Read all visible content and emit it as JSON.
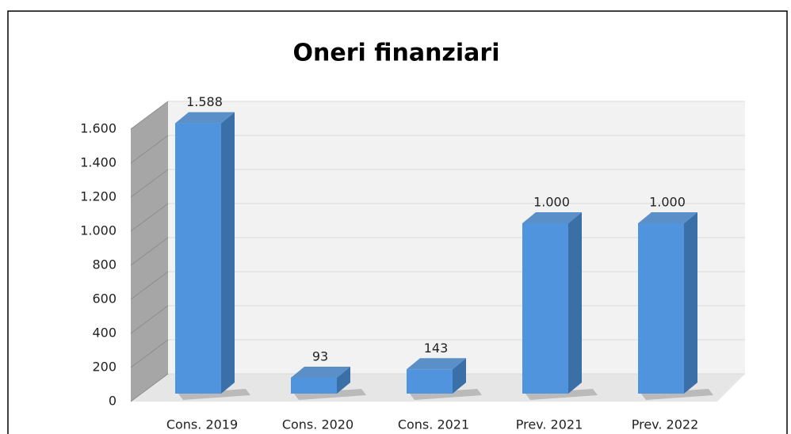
{
  "chart_data": {
    "type": "bar",
    "title": "Oneri finanziari",
    "categories": [
      "Cons. 2019",
      "Cons. 2020",
      "Cons. 2021",
      "Prev. 2021",
      "Prev. 2022"
    ],
    "values": [
      1588,
      93,
      143,
      1000,
      1000
    ],
    "value_labels": [
      "1.588",
      "93",
      "143",
      "1.000",
      "1.000"
    ],
    "color": "#4f94dc",
    "ylim": [
      0,
      1600
    ],
    "yticks": [
      0,
      200,
      400,
      600,
      800,
      {
        "value": 1000,
        "label": "1.000"
      },
      {
        "value": 1200,
        "label": "1.200"
      },
      {
        "value": 1400,
        "label": "1.400"
      },
      {
        "value": 1600,
        "label": "1.600"
      }
    ],
    "grid": true
  }
}
